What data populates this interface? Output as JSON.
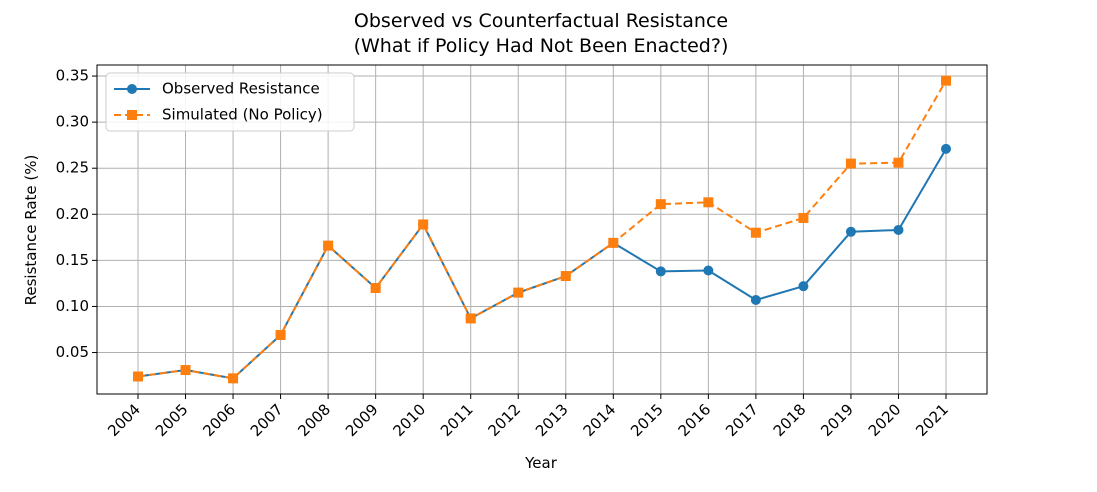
{
  "chart_data": {
    "type": "line",
    "title_line1": "Observed vs Counterfactual Resistance",
    "title_line2": "(What if Policy Had Not Been Enacted?)",
    "xlabel": "Year",
    "ylabel": "Resistance Rate (%)",
    "categories": [
      "2004",
      "2005",
      "2006",
      "2007",
      "2008",
      "2009",
      "2010",
      "2011",
      "2012",
      "2013",
      "2014",
      "2015",
      "2016",
      "2017",
      "2018",
      "2019",
      "2020",
      "2021"
    ],
    "yticks": [
      "0.05",
      "0.10",
      "0.15",
      "0.20",
      "0.25",
      "0.30",
      "0.35"
    ],
    "ylim": [
      0.005,
      0.362
    ],
    "grid": true,
    "legend_position": "top-left",
    "series": [
      {
        "name": "Observed Resistance",
        "color": "#1f77b4",
        "marker": "circle",
        "linestyle": "solid",
        "values": [
          0.024,
          0.031,
          0.022,
          0.069,
          0.166,
          0.12,
          0.189,
          0.087,
          0.115,
          0.133,
          0.169,
          0.138,
          0.139,
          0.107,
          0.122,
          0.181,
          0.183,
          0.271
        ]
      },
      {
        "name": "Simulated (No Policy)",
        "color": "#ff7f0e",
        "marker": "square",
        "linestyle": "dashed",
        "values": [
          0.024,
          0.031,
          0.022,
          0.069,
          0.166,
          0.12,
          0.189,
          0.087,
          0.115,
          0.133,
          0.169,
          0.211,
          0.213,
          0.18,
          0.196,
          0.255,
          0.256,
          0.345
        ]
      }
    ]
  }
}
